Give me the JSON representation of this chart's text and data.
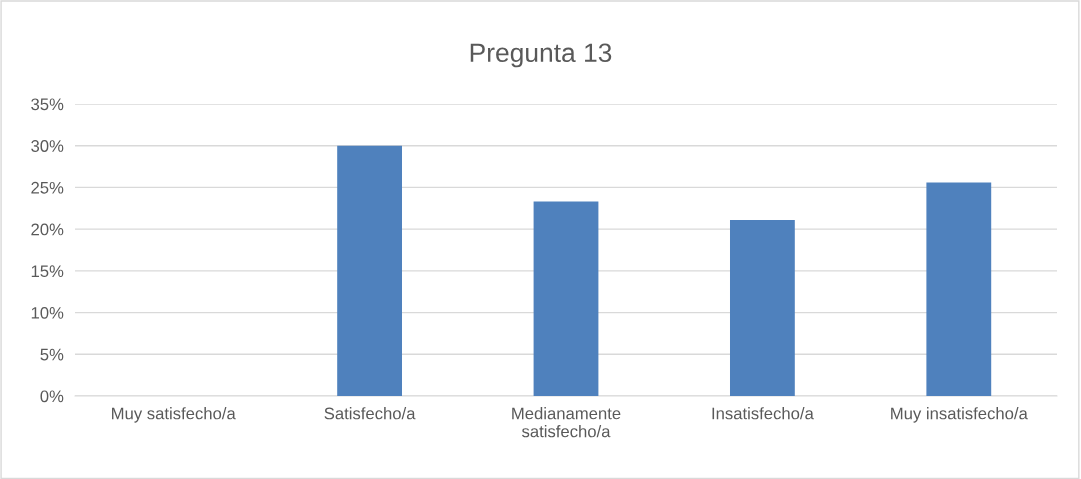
{
  "chart_data": {
    "type": "bar",
    "title": "Pregunta 13",
    "categories": [
      "Muy satisfecho/a",
      "Satisfecho/a",
      "Medianamente\nsatisfecho/a",
      "Insatisfecho/a",
      "Muy insatisfecho/a"
    ],
    "values": [
      0,
      30,
      23.3,
      21.1,
      25.6
    ],
    "color": "#4f81bd",
    "ylim": [
      0,
      35
    ],
    "yticks": [
      {
        "value": 0,
        "label": "0%"
      },
      {
        "value": 5,
        "label": "5%"
      },
      {
        "value": 10,
        "label": "10%"
      },
      {
        "value": 15,
        "label": "15%"
      },
      {
        "value": 20,
        "label": "20%"
      },
      {
        "value": 25,
        "label": "25%"
      },
      {
        "value": 30,
        "label": "30%"
      },
      {
        "value": 35,
        "label": "35%"
      }
    ],
    "grid": "y",
    "legend": false
  }
}
